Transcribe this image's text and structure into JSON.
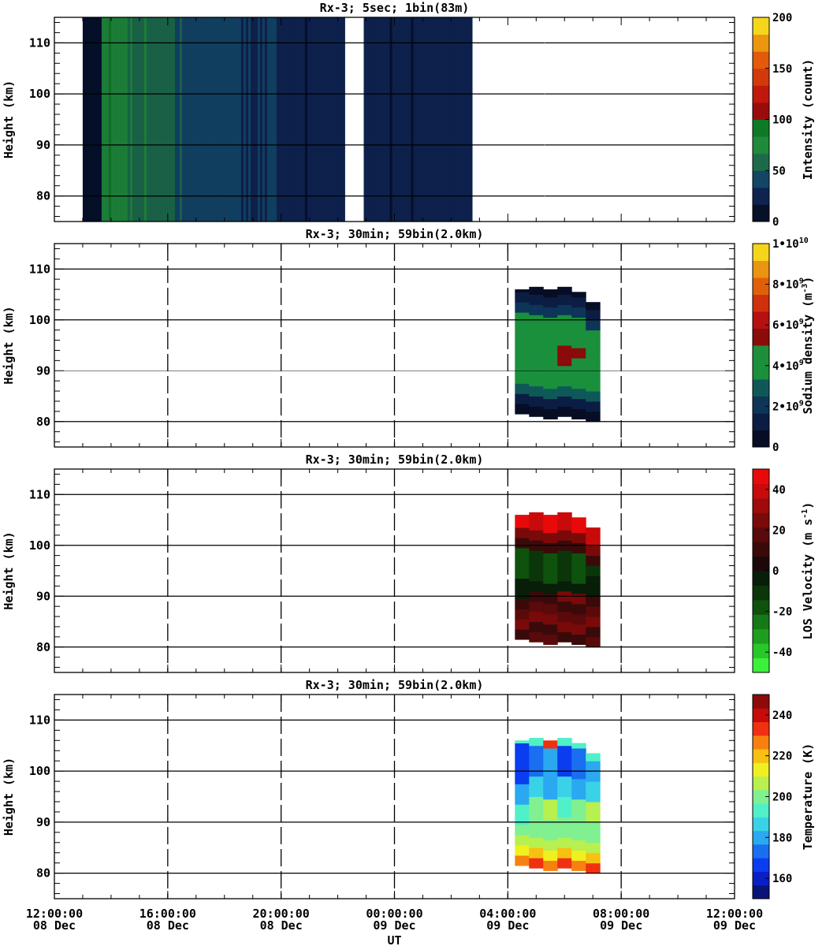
{
  "chart_data": [
    {
      "type": "heatmap",
      "title": "Rx-3;  5sec; 1bin(83m)",
      "ylabel": "Height (km)",
      "colorbar_label": "Intensity (count)",
      "colorbar_ticks": [
        "0",
        "50",
        "100",
        "150",
        "200"
      ],
      "colorbar_range": [
        0,
        200
      ],
      "colors": [
        "#061028",
        "#0e2350",
        "#134565",
        "#1d6a4a",
        "#1f8a3a",
        "#0f7a25",
        "#9a0c0c",
        "#c0180c",
        "#d23a0c",
        "#e25a0a",
        "#ec9610",
        "#f6d61c"
      ],
      "ylim": [
        75,
        115
      ],
      "yticks": [
        "80",
        "90",
        "100",
        "110"
      ],
      "data_spans": [
        [
          "13:00",
          "22:15"
        ],
        [
          "22:55",
          "02:45"
        ]
      ],
      "features": "weak broad background green/teal fading with time; strong sodium layer 82-100 km from ~03:00 to ~07:30 on 09 Dec with peak near 92 km"
    },
    {
      "type": "heatmap",
      "title": "Rx-3; 30min; 59bin(2.0km)",
      "ylabel": "Height (km)",
      "colorbar_label": "Sodium density (m-3)",
      "colorbar_ticks": [
        "0",
        "2•10^9",
        "4•10^9",
        "6•10^9",
        "8•10^9",
        "1•10^10"
      ],
      "colorbar_range": [
        0,
        10000000000
      ],
      "colors": [
        "#060d24",
        "#0c1d44",
        "#0d3558",
        "#0e5958",
        "#1a8f3c",
        "#1e8e3a",
        "#8b0a0a",
        "#b61010",
        "#d0300c",
        "#e0600a",
        "#ea9410",
        "#f5d41c"
      ],
      "ylim": [
        75,
        115
      ],
      "yticks": [
        "80",
        "90",
        "100",
        "110"
      ],
      "x_bins_hours_since_start": [
        16.5,
        17.0,
        17.5,
        18.0,
        18.5,
        19.0
      ],
      "bin_tops_km": [
        106,
        106.5,
        106,
        106.5,
        105.5,
        103.5
      ],
      "bin_bottoms_km": [
        81.5,
        81,
        80.5,
        81,
        80.5,
        80
      ]
    },
    {
      "type": "heatmap",
      "title": "Rx-3; 30min; 59bin(2.0km)",
      "ylabel": "Height (km)",
      "colorbar_label": "LOS Velocity (m s-1)",
      "colorbar_ticks": [
        "-40",
        "-20",
        "0",
        "20",
        "40"
      ],
      "colorbar_range": [
        -50,
        50
      ],
      "colors": [
        "#3cf03c",
        "#28c828",
        "#1e9e1e",
        "#167816",
        "#0e520e",
        "#0a360a",
        "#081e08",
        "#1c0808",
        "#3a0a0a",
        "#5a0a0a",
        "#7a0a0a",
        "#a00a0a",
        "#c80a0a",
        "#e80a0a"
      ],
      "ylim": [
        75,
        115
      ],
      "yticks": [
        "80",
        "90",
        "100",
        "110"
      ]
    },
    {
      "type": "heatmap",
      "title": "Rx-3; 30min; 59bin(2.0km)",
      "ylabel": "Height (km)",
      "colorbar_label": "Temperature (K)",
      "colorbar_ticks": [
        "160",
        "180",
        "200",
        "220",
        "240"
      ],
      "colorbar_range": [
        150,
        250
      ],
      "colors": [
        "#0a1478",
        "#0a1ec8",
        "#0a3cf0",
        "#1a6ef0",
        "#2aa8f0",
        "#3ad2e8",
        "#50f0c8",
        "#80f090",
        "#b8f050",
        "#f0f020",
        "#f8c010",
        "#f88010",
        "#f03010",
        "#c80a0a",
        "#8c0a0a"
      ],
      "ylim": [
        75,
        115
      ],
      "yticks": [
        "80",
        "90",
        "100",
        "110"
      ]
    }
  ],
  "xaxis": {
    "label": "UT",
    "ticks": [
      {
        "time": "12:00:00",
        "date": "08 Dec"
      },
      {
        "time": "16:00:00",
        "date": "08 Dec"
      },
      {
        "time": "20:00:00",
        "date": "08 Dec"
      },
      {
        "time": "00:00:00",
        "date": "09 Dec"
      },
      {
        "time": "04:00:00",
        "date": "09 Dec"
      },
      {
        "time": "08:00:00",
        "date": "09 Dec"
      },
      {
        "time": "12:00:00",
        "date": "09 Dec"
      }
    ]
  }
}
